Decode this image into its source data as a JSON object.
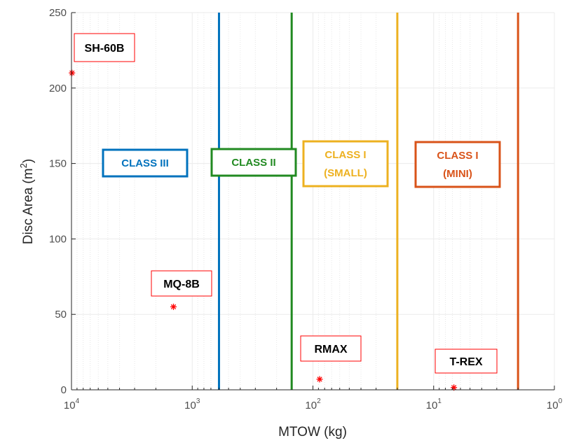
{
  "chart_data": {
    "type": "scatter",
    "xlabel": "MTOW (kg)",
    "ylabel_main": "Disc Area (m",
    "ylabel_sup": "2",
    "ylabel_close": ")",
    "x_scale": "log",
    "x_reversed": true,
    "xlim": [
      1,
      10000
    ],
    "ylim": [
      0,
      250
    ],
    "x_ticks": [
      {
        "value": 10000,
        "base": "10",
        "exp": "4"
      },
      {
        "value": 1000,
        "base": "10",
        "exp": "3"
      },
      {
        "value": 100,
        "base": "10",
        "exp": "2"
      },
      {
        "value": 10,
        "base": "10",
        "exp": "1"
      },
      {
        "value": 1,
        "base": "10",
        "exp": "0"
      }
    ],
    "y_ticks": [
      0,
      50,
      100,
      150,
      200,
      250
    ],
    "grid": true,
    "minor_grid": true,
    "marker_color": "#ff0000",
    "points": [
      {
        "name": "SH-60B",
        "x": 9900,
        "y": 210
      },
      {
        "name": "MQ-8B",
        "x": 1430,
        "y": 55
      },
      {
        "name": "RMAX",
        "x": 88,
        "y": 7
      },
      {
        "name": "T-REX",
        "x": 6.8,
        "y": 1.5
      }
    ],
    "class_boundaries": [
      {
        "x": 600,
        "color": "#0072bd"
      },
      {
        "x": 150,
        "color": "#218a21"
      },
      {
        "x": 20,
        "color": "#edb120"
      },
      {
        "x": 2,
        "color": "#d95319"
      }
    ],
    "class_labels": [
      {
        "lines": [
          "CLASS III"
        ],
        "color": "#0072bd"
      },
      {
        "lines": [
          "CLASS II"
        ],
        "color": "#218a21"
      },
      {
        "lines": [
          "CLASS I",
          "(SMALL)"
        ],
        "color": "#edb120"
      },
      {
        "lines": [
          "CLASS I",
          "(MINI)"
        ],
        "color": "#d95319"
      }
    ]
  }
}
